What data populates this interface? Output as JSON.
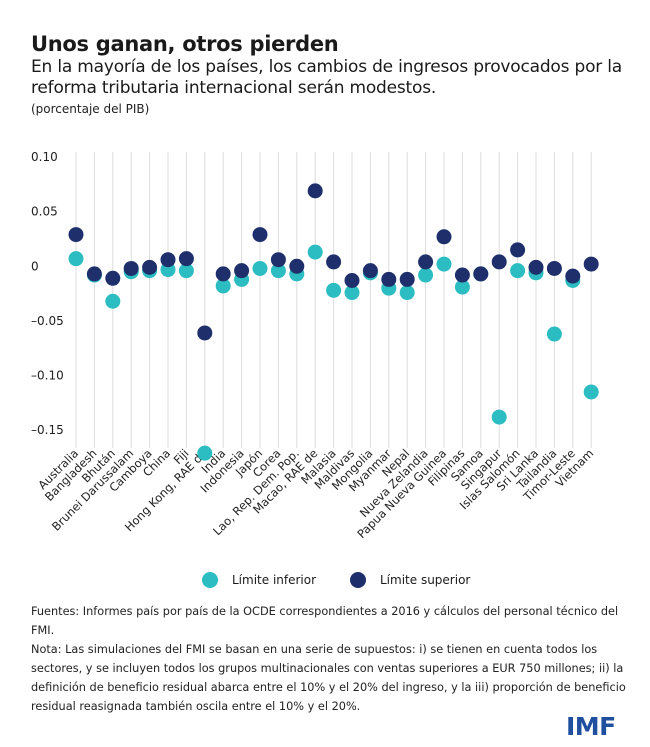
{
  "header": {
    "title": "Unos ganan, otros pierden",
    "subtitle": "En la mayoría de los países, los cambios de ingresos provocados por la reforma tributaria internacional serán modestos.",
    "unit": "(porcentaje del PIB)"
  },
  "colors": {
    "lower": "#2bbdc2",
    "upper": "#1e2f6b",
    "grid": "#dcdcdc",
    "logo": "#1f4f9e"
  },
  "chart_data": {
    "type": "scatter",
    "title": "Unos ganan, otros pierden",
    "ylabel": "(porcentaje del PIB)",
    "ylim": [
      -0.18,
      0.1
    ],
    "yticks": [
      0.1,
      0.05,
      0,
      -0.05,
      -0.1,
      -0.15
    ],
    "ytick_labels": [
      "0.10",
      "0.05",
      "0",
      "–0.05",
      "–0.10",
      "–0.15"
    ],
    "grid": "vertical",
    "legend_position": "bottom-center",
    "categories": [
      "Australia",
      "Bangladesh",
      "Bhután",
      "Brunei Darussalam",
      "Camboya",
      "China",
      "Fiji",
      "Hong Kong, RAE de",
      "India",
      "Indonesia",
      "Japón",
      "Corea",
      "Lao, Rep. Dem. Pop.",
      "Macao, RAE de",
      "Malasia",
      "Maldivas",
      "Mongolia",
      "Myanmar",
      "Nepal",
      "Nueva Zelandia",
      "Papua Nueva Guinea",
      "Filipinas",
      "Samoa",
      "Singapur",
      "Islas Salomón",
      "Sri Lanka",
      "Tailandia",
      "Timor-Leste",
      "Vietnam"
    ],
    "series": [
      {
        "name": "Límite inferior",
        "values": [
          0.007,
          -0.008,
          -0.032,
          -0.005,
          -0.004,
          -0.003,
          -0.004,
          -0.171,
          -0.018,
          -0.012,
          -0.002,
          -0.004,
          -0.007,
          0.013,
          -0.022,
          -0.024,
          -0.006,
          -0.02,
          -0.024,
          -0.008,
          0.002,
          -0.019,
          -0.007,
          -0.138,
          -0.004,
          -0.006,
          -0.062,
          -0.013,
          -0.115
        ]
      },
      {
        "name": "Límite superior",
        "values": [
          0.029,
          -0.007,
          -0.011,
          -0.002,
          -0.001,
          0.006,
          0.007,
          -0.061,
          -0.007,
          -0.004,
          0.029,
          0.006,
          0.0,
          0.069,
          0.004,
          -0.013,
          -0.004,
          -0.012,
          -0.012,
          0.004,
          0.027,
          -0.008,
          -0.007,
          0.004,
          0.015,
          -0.001,
          -0.002,
          -0.009,
          0.002
        ]
      }
    ]
  },
  "legend": {
    "lower_label": "Límite inferior",
    "upper_label": "Límite superior"
  },
  "notes": {
    "sources": "Fuentes: Informes país por país de la OCDE correspondientes a 2016 y cálculos del personal técnico del FMI.",
    "note": "Nota: Las simulaciones del FMI se basan en una serie de supuestos: i) se tienen en cuenta todos los sectores, y se incluyen todos los grupos multinacionales con ventas superiores a EUR 750 millones; ii) la definición de beneficio residual abarca entre el 10% y el 20% del ingreso, y la iii) proporción de beneficio residual reasignada también oscila entre el 10% y el 20%."
  },
  "logo": "IMF"
}
